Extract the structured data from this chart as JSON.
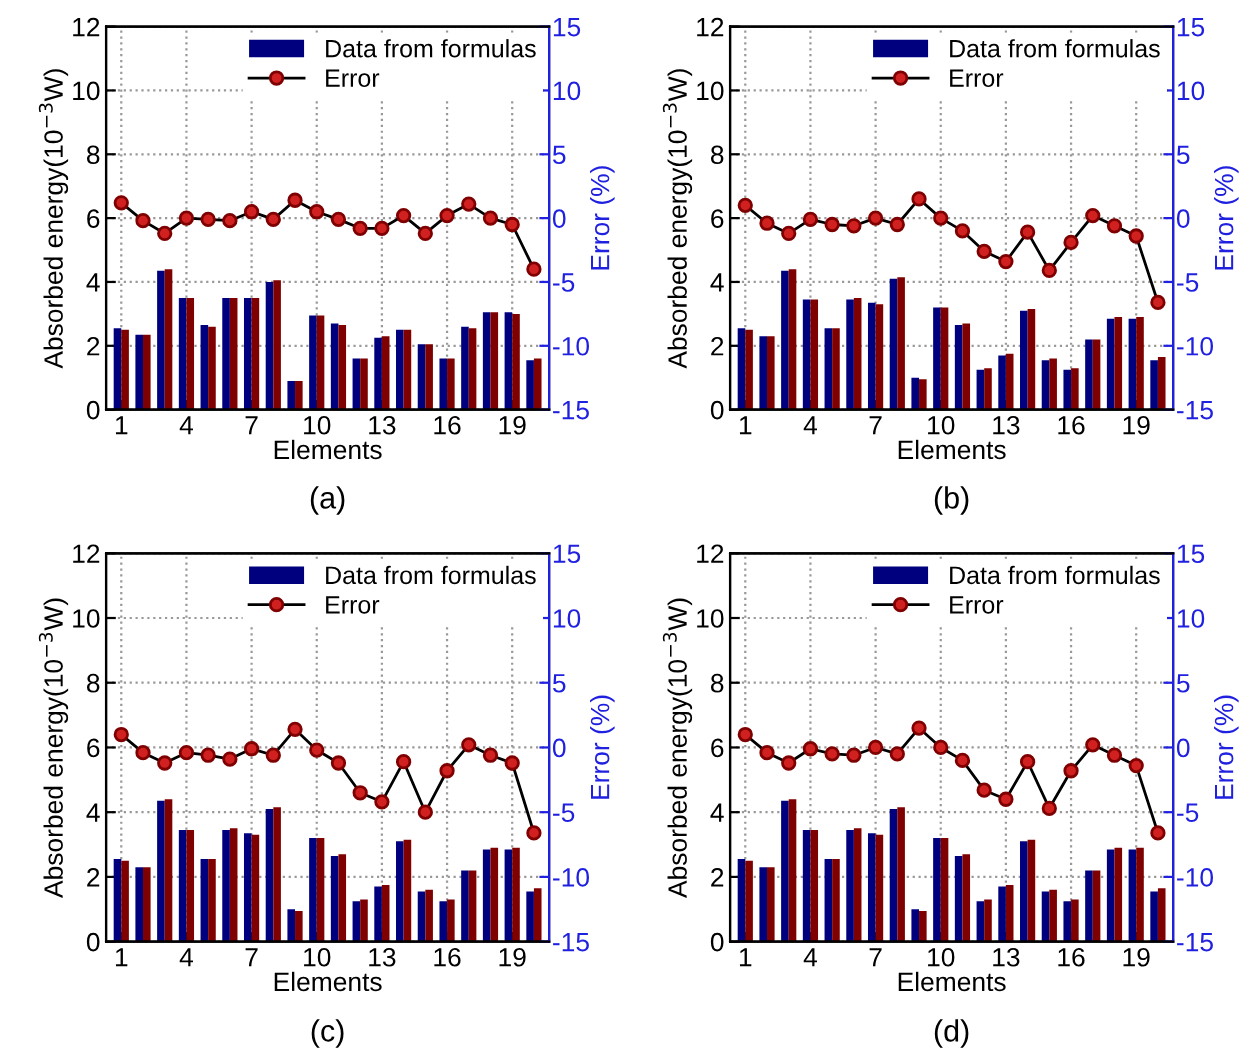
{
  "chart_data": [
    {
      "type": "bar",
      "xlabel": "Elements",
      "ylabel": "Absorbed energy(10$^{−3}$W)",
      "y2label": "Error (%)",
      "annotations": [
        "(a)"
      ],
      "x": [
        1,
        2,
        3,
        4,
        5,
        6,
        7,
        8,
        9,
        10,
        11,
        12,
        13,
        14,
        15,
        16,
        17,
        18,
        19,
        20
      ],
      "xlim": [
        0.3,
        20.7
      ],
      "xticks": [
        1,
        4,
        7,
        10,
        13,
        16,
        19
      ],
      "ylim": [
        0,
        12
      ],
      "yticks": [
        0,
        2,
        4,
        6,
        8,
        10,
        12
      ],
      "y2lim": [
        -15,
        15
      ],
      "y2ticks": [
        -15,
        -10,
        -5,
        0,
        5,
        10,
        15
      ],
      "grid": true,
      "legend": "top right",
      "series": [
        {
          "name": "Data from formulas",
          "color": "#00007f",
          "values": [
            2.55,
            2.35,
            4.35,
            3.5,
            2.65,
            3.5,
            3.5,
            4.0,
            0.9,
            2.95,
            2.7,
            1.6,
            2.25,
            2.5,
            2.05,
            1.6,
            2.6,
            3.05,
            3.05,
            1.55
          ]
        },
        {
          "color": "#7f0000",
          "values": [
            2.5,
            2.35,
            4.4,
            3.5,
            2.6,
            3.5,
            3.5,
            4.05,
            0.9,
            2.95,
            2.65,
            1.6,
            2.3,
            2.5,
            2.05,
            1.6,
            2.55,
            3.05,
            3.0,
            1.6
          ]
        },
        {
          "name": "Error",
          "type": "line",
          "axis": "y2",
          "color": "#000000",
          "marker": "circle",
          "values": [
            1.2,
            -0.2,
            -1.2,
            0,
            -0.1,
            -0.2,
            0.5,
            -0.1,
            1.4,
            0.5,
            -0.1,
            -0.8,
            -0.8,
            0.2,
            -1.2,
            0.2,
            1.1,
            0,
            -0.5,
            -4.0
          ]
        }
      ]
    },
    {
      "type": "bar",
      "xlabel": "Elements",
      "ylabel": "Absorbed energy(10$^{−3}$W)",
      "y2label": "Error (%)",
      "annotations": [
        "(b)"
      ],
      "x": [
        1,
        2,
        3,
        4,
        5,
        6,
        7,
        8,
        9,
        10,
        11,
        12,
        13,
        14,
        15,
        16,
        17,
        18,
        19,
        20
      ],
      "xlim": [
        0.3,
        20.7
      ],
      "xticks": [
        1,
        4,
        7,
        10,
        13,
        16,
        19
      ],
      "ylim": [
        0,
        12
      ],
      "yticks": [
        0,
        2,
        4,
        6,
        8,
        10,
        12
      ],
      "y2lim": [
        -15,
        15
      ],
      "y2ticks": [
        -15,
        -10,
        -5,
        0,
        5,
        10,
        15
      ],
      "grid": true,
      "legend": "top right",
      "series": [
        {
          "name": "Data from formulas",
          "color": "#00007f",
          "values": [
            2.55,
            2.3,
            4.35,
            3.45,
            2.55,
            3.45,
            3.35,
            4.1,
            1.0,
            3.2,
            2.65,
            1.25,
            1.7,
            3.1,
            1.55,
            1.25,
            2.2,
            2.85,
            2.85,
            1.55
          ]
        },
        {
          "color": "#7f0000",
          "values": [
            2.5,
            2.3,
            4.4,
            3.45,
            2.55,
            3.5,
            3.3,
            4.15,
            0.95,
            3.2,
            2.7,
            1.3,
            1.75,
            3.15,
            1.6,
            1.3,
            2.2,
            2.9,
            2.9,
            1.65
          ]
        },
        {
          "name": "Error",
          "type": "line",
          "axis": "y2",
          "color": "#000000",
          "marker": "circle",
          "values": [
            1.0,
            -0.4,
            -1.2,
            -0.1,
            -0.5,
            -0.6,
            0,
            -0.5,
            1.5,
            0,
            -1.0,
            -2.6,
            -3.4,
            -1.1,
            -4.1,
            -1.9,
            0.2,
            -0.6,
            -1.4,
            -6.6
          ]
        }
      ]
    },
    {
      "type": "bar",
      "xlabel": "Elements",
      "ylabel": "Absorbed energy(10$^{−3}$W)",
      "y2label": "Error (%)",
      "annotations": [
        "(c)"
      ],
      "x": [
        1,
        2,
        3,
        4,
        5,
        6,
        7,
        8,
        9,
        10,
        11,
        12,
        13,
        14,
        15,
        16,
        17,
        18,
        19,
        20
      ],
      "xlim": [
        0.3,
        20.7
      ],
      "xticks": [
        1,
        4,
        7,
        10,
        13,
        16,
        19
      ],
      "ylim": [
        0,
        12
      ],
      "yticks": [
        0,
        2,
        4,
        6,
        8,
        10,
        12
      ],
      "y2lim": [
        -15,
        15
      ],
      "y2ticks": [
        -15,
        -10,
        -5,
        0,
        5,
        10,
        15
      ],
      "grid": true,
      "legend": "top right",
      "series": [
        {
          "name": "Data from formulas",
          "color": "#00007f",
          "values": [
            2.55,
            2.3,
            4.35,
            3.45,
            2.55,
            3.45,
            3.35,
            4.1,
            1.0,
            3.2,
            2.65,
            1.25,
            1.7,
            3.1,
            1.55,
            1.25,
            2.2,
            2.85,
            2.85,
            1.55
          ]
        },
        {
          "color": "#7f0000",
          "values": [
            2.5,
            2.3,
            4.4,
            3.45,
            2.55,
            3.5,
            3.3,
            4.15,
            0.95,
            3.2,
            2.7,
            1.3,
            1.75,
            3.15,
            1.6,
            1.3,
            2.2,
            2.9,
            2.9,
            1.65
          ]
        },
        {
          "name": "Error",
          "type": "line",
          "axis": "y2",
          "color": "#000000",
          "marker": "circle",
          "values": [
            1.0,
            -0.4,
            -1.2,
            -0.4,
            -0.6,
            -0.9,
            -0.1,
            -0.6,
            1.4,
            -0.2,
            -1.2,
            -3.5,
            -4.2,
            -1.1,
            -5.0,
            -1.8,
            0.2,
            -0.6,
            -1.2,
            -6.6
          ]
        }
      ]
    },
    {
      "type": "bar",
      "xlabel": "Elements",
      "ylabel": "Absorbed energy(10$^{−3}$W)",
      "y2label": "Error (%)",
      "annotations": [
        "(d)"
      ],
      "x": [
        1,
        2,
        3,
        4,
        5,
        6,
        7,
        8,
        9,
        10,
        11,
        12,
        13,
        14,
        15,
        16,
        17,
        18,
        19,
        20
      ],
      "xlim": [
        0.3,
        20.7
      ],
      "xticks": [
        1,
        4,
        7,
        10,
        13,
        16,
        19
      ],
      "ylim": [
        0,
        12
      ],
      "yticks": [
        0,
        2,
        4,
        6,
        8,
        10,
        12
      ],
      "y2lim": [
        -15,
        15
      ],
      "y2ticks": [
        -15,
        -10,
        -5,
        0,
        5,
        10,
        15
      ],
      "grid": true,
      "legend": "top right",
      "series": [
        {
          "name": "Data from formulas",
          "color": "#00007f",
          "values": [
            2.55,
            2.3,
            4.35,
            3.45,
            2.55,
            3.45,
            3.35,
            4.1,
            1.0,
            3.2,
            2.65,
            1.25,
            1.7,
            3.1,
            1.55,
            1.25,
            2.2,
            2.85,
            2.85,
            1.55
          ]
        },
        {
          "color": "#7f0000",
          "values": [
            2.5,
            2.3,
            4.4,
            3.45,
            2.55,
            3.5,
            3.3,
            4.15,
            0.95,
            3.2,
            2.7,
            1.3,
            1.75,
            3.15,
            1.6,
            1.3,
            2.2,
            2.9,
            2.9,
            1.65
          ]
        },
        {
          "name": "Error",
          "type": "line",
          "axis": "y2",
          "color": "#000000",
          "marker": "circle",
          "values": [
            1.0,
            -0.4,
            -1.2,
            -0.1,
            -0.5,
            -0.6,
            0,
            -0.5,
            1.5,
            0,
            -1.0,
            -3.3,
            -4.0,
            -1.1,
            -4.7,
            -1.8,
            0.2,
            -0.6,
            -1.4,
            -6.6
          ]
        }
      ]
    }
  ]
}
